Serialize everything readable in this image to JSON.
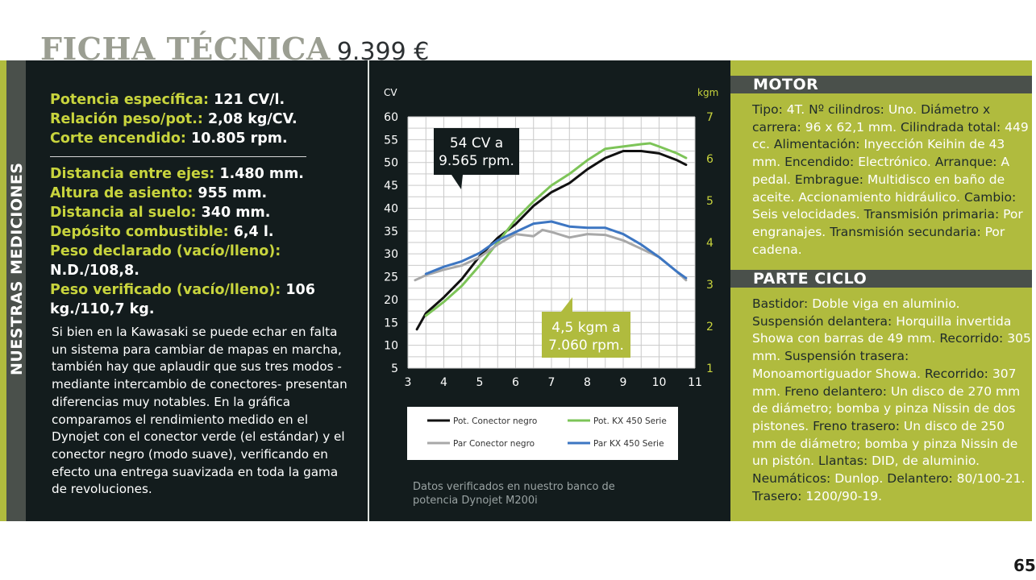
{
  "header": {
    "title": "FICHA TÉCNICA",
    "price": "9.399 €"
  },
  "sidebar": {
    "label": "NUESTRAS MEDICIONES"
  },
  "specs_top": [
    {
      "label": "Potencia específica:",
      "value": "121 CV/l."
    },
    {
      "label": "Relación peso/pot.:",
      "value": "2,08 kg/CV."
    },
    {
      "label": "Corte encendido:",
      "value": "10.805 rpm."
    }
  ],
  "specs_bottom": [
    {
      "label": "Distancia entre ejes:",
      "value": "1.480 mm."
    },
    {
      "label": "Altura de asiento:",
      "value": "955 mm."
    },
    {
      "label": "Distancia al suelo:",
      "value": "340 mm."
    },
    {
      "label": "Depósito combustible:",
      "value": "6,4 l."
    },
    {
      "label": "Peso declarado (vacío/lleno):",
      "value": "N.D./108,8."
    },
    {
      "label": "Peso verificado (vacío/lleno):",
      "value": "106 kg./110,7 kg."
    }
  ],
  "body_text": "Si bien en la Kawasaki se puede echar en falta un sistema para cambiar de mapas en marcha, también hay que aplaudir que sus tres modos -mediante intercambio de conectores- presentan diferencias muy notables. En la gráfica comparamos el rendimiento medido en el Dynojet con el conector verde (el estándar) y el conector negro (modo suave), verificando en efecto una entrega suavizada en toda la gama de revoluciones.",
  "chart_caption": "Datos verificados en nuestro banco de potencia Dynojet M200i",
  "chart_data": {
    "type": "line",
    "xlabel": "",
    "ylabel": "CV",
    "y2label": "kgm",
    "xlim": [
      3,
      11
    ],
    "ylim": [
      5,
      60
    ],
    "y2lim": [
      1,
      7
    ],
    "x_ticks": [
      "3",
      "4",
      "5",
      "6",
      "7",
      "8",
      "9",
      "10",
      "11"
    ],
    "y_ticks": [
      "5",
      "10",
      "15",
      "20",
      "25",
      "30",
      "35",
      "40",
      "45",
      "50",
      "55",
      "60"
    ],
    "y2_ticks": [
      "1",
      "2",
      "3",
      "4",
      "5",
      "6",
      "7"
    ],
    "grid": true,
    "legend_position": "bottom",
    "series": [
      {
        "name": "Pot. Conector negro",
        "axis": "left",
        "color": "#111111",
        "x": [
          3.25,
          3.5,
          4.0,
          4.5,
          5.0,
          5.5,
          6.0,
          6.5,
          7.0,
          7.5,
          8.0,
          8.5,
          9.0,
          9.5,
          10.0,
          10.5,
          10.75
        ],
        "y": [
          13.5,
          17,
          20.5,
          24.5,
          29.5,
          33.5,
          36.5,
          40.5,
          43.5,
          45.5,
          48.5,
          51,
          52.5,
          52.5,
          52,
          50.5,
          49.5
        ]
      },
      {
        "name": "Pot. KX 450 Serie",
        "axis": "left",
        "color": "#7dc458",
        "x": [
          3.5,
          4.0,
          4.5,
          5.0,
          5.5,
          6.0,
          6.5,
          7.0,
          7.5,
          8.0,
          8.5,
          9.0,
          9.5,
          9.75,
          10.0,
          10.5,
          10.75
        ],
        "y": [
          16.5,
          19.5,
          23,
          27.5,
          32.5,
          37.5,
          41.5,
          45,
          47.5,
          50.5,
          53,
          53.5,
          54,
          54.2,
          53.5,
          52,
          51
        ]
      },
      {
        "name": "Par Conector negro",
        "axis": "right",
        "color": "#a8a8a8",
        "x": [
          3.2,
          3.5,
          4.0,
          4.5,
          5.0,
          5.5,
          6.0,
          6.5,
          6.75,
          7.0,
          7.5,
          8.0,
          8.5,
          9.0,
          9.5,
          10.0,
          10.5,
          10.75
        ],
        "y": [
          3.1,
          3.22,
          3.35,
          3.45,
          3.65,
          3.95,
          4.2,
          4.15,
          4.3,
          4.25,
          4.12,
          4.2,
          4.18,
          4.05,
          3.85,
          3.65,
          3.3,
          3.1
        ]
      },
      {
        "name": "Par KX 450 Serie",
        "axis": "right",
        "color": "#3d76c2",
        "x": [
          3.5,
          4.0,
          4.5,
          5.0,
          5.5,
          6.0,
          6.5,
          7.0,
          7.5,
          8.0,
          8.5,
          9.0,
          9.5,
          10.0,
          10.5,
          10.75
        ],
        "y": [
          3.25,
          3.42,
          3.55,
          3.75,
          4.05,
          4.25,
          4.45,
          4.5,
          4.38,
          4.35,
          4.35,
          4.2,
          3.95,
          3.65,
          3.3,
          3.15
        ]
      }
    ],
    "annotations": [
      {
        "text": "54 CV a 9.565 rpm.",
        "lines": [
          "54 CV a",
          "9.565 rpm."
        ]
      },
      {
        "text": "4,5 kgm a 7.060 rpm.",
        "lines": [
          "4,5 kgm a",
          "7.060 rpm."
        ]
      }
    ]
  },
  "motor": {
    "title": "MOTOR",
    "items": [
      {
        "label": "Tipo:",
        "value": "4T."
      },
      {
        "label": "Nº cilindros:",
        "value": "Uno."
      },
      {
        "label": "Diámetro x carrera:",
        "value": "96 x 62,1 mm."
      },
      {
        "label": "Cilindrada total:",
        "value": "449 cc."
      },
      {
        "label": "Alimentación:",
        "value": "Inyección Keihin de 43 mm."
      },
      {
        "label": "Encendido:",
        "value": "Electrónico."
      },
      {
        "label": "Arranque:",
        "value": "A pedal."
      },
      {
        "label": "Embrague:",
        "value": "Multidisco en baño de aceite. Accionamiento hidráulico."
      },
      {
        "label": "Cambio:",
        "value": "Seis velocidades."
      },
      {
        "label": "Transmisión primaria:",
        "value": "Por engranajes."
      },
      {
        "label": "Transmisión secundaria:",
        "value": "Por cadena."
      }
    ]
  },
  "ciclo": {
    "title": "PARTE CICLO",
    "items": [
      {
        "label": "Bastidor:",
        "value": "Doble viga en aluminio."
      },
      {
        "label": "Suspensión delantera:",
        "value": "Horquilla invertida Showa con barras de 49 mm."
      },
      {
        "label": "Recorrido:",
        "value": "305 mm."
      },
      {
        "label": "Suspensión trasera:",
        "value": "Monoamortiguador Showa."
      },
      {
        "label": "Recorrido:",
        "value": "307 mm."
      },
      {
        "label": "Freno delantero:",
        "value": "Un disco de 270 mm de diámetro; bomba y pinza Nissin de dos pistones."
      },
      {
        "label": "Freno trasero:",
        "value": "Un disco de 250 mm de diámetro; bomba y pinza Nissin de un pistón."
      },
      {
        "label": "Llantas:",
        "value": "DID, de aluminio."
      },
      {
        "label": "Neumáticos:",
        "value": "Dunlop."
      },
      {
        "label": "Delantero:",
        "value": "80/100-21."
      },
      {
        "label": "Trasero:",
        "value": "1200/90-19."
      }
    ]
  },
  "page": {
    "number": "65"
  }
}
